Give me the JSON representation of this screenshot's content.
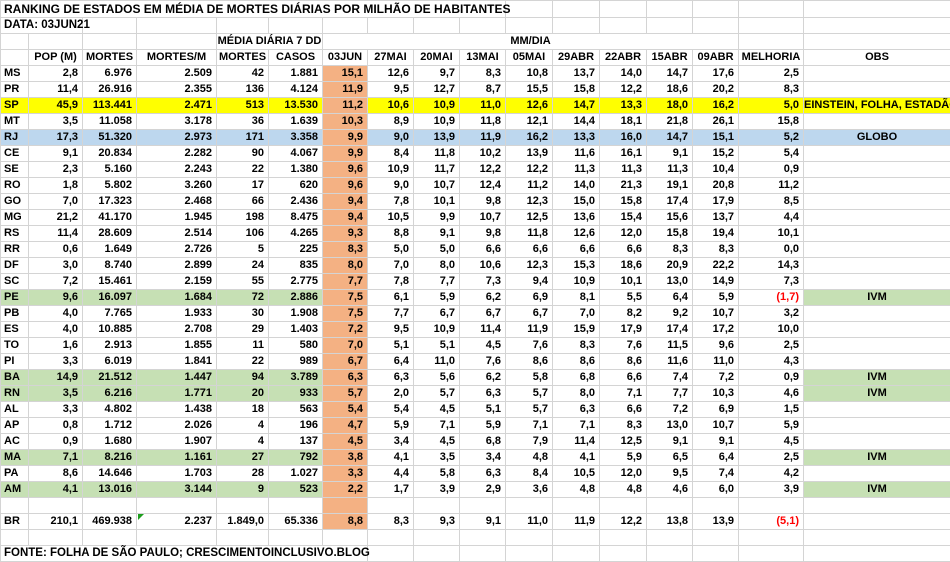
{
  "title": "RANKING DE ESTADOS EM MÉDIA DE MORTES DIÁRIAS POR MILHÃO DE HABITANTES",
  "date_label": "DATA: 03JUN21",
  "footer": "FONTE: FOLHA DE SÃO PAULO; CRESCIMENTOINCLUSIVO.BLOG",
  "colors": {
    "yellow": "#FFFF00",
    "blue": "#BDD7EE",
    "green": "#C6E0B4",
    "orange": "#F4B183",
    "red": "#FF0000",
    "grid": "#D4D4D4",
    "flag": "#1E9E1E"
  },
  "table": {
    "group_headers": {
      "media_diaria_7dd": "MÉDIA DIÁRIA 7 DD",
      "mm_dia": "MM/DIA"
    },
    "columns": [
      "",
      "POP (M)",
      "MORTES",
      "MORTES/M",
      "MORTES",
      "CASOS",
      "03JUN",
      "27MAI",
      "20MAI",
      "13MAI",
      "05MAI",
      "29ABR",
      "22ABR",
      "15ABR",
      "09ABR",
      "MELHORIA",
      "OBS"
    ],
    "rows": [
      {
        "cells": [
          "MS",
          "2,8",
          "6.976",
          "2.509",
          "42",
          "1.881",
          "15,1",
          "12,6",
          "9,7",
          "8,3",
          "10,8",
          "13,7",
          "14,0",
          "14,7",
          "17,6",
          "2,5",
          ""
        ]
      },
      {
        "cells": [
          "PR",
          "11,4",
          "26.916",
          "2.355",
          "136",
          "4.124",
          "11,9",
          "9,5",
          "12,7",
          "8,7",
          "15,5",
          "15,8",
          "12,2",
          "18,6",
          "20,2",
          "8,3",
          ""
        ]
      },
      {
        "cells": [
          "SP",
          "45,9",
          "113.441",
          "2.471",
          "513",
          "13.530",
          "11,2",
          "10,6",
          "10,9",
          "11,0",
          "12,6",
          "14,7",
          "13,3",
          "18,0",
          "16,2",
          "5,0",
          "EINSTEIN, FOLHA, ESTADÃO"
        ],
        "highlight": "yellow"
      },
      {
        "cells": [
          "MT",
          "3,5",
          "11.058",
          "3.178",
          "36",
          "1.639",
          "10,3",
          "8,9",
          "10,9",
          "11,8",
          "12,1",
          "14,4",
          "18,1",
          "21,8",
          "26,1",
          "15,8",
          ""
        ]
      },
      {
        "cells": [
          "RJ",
          "17,3",
          "51.320",
          "2.973",
          "171",
          "3.358",
          "9,9",
          "9,0",
          "13,9",
          "11,9",
          "16,2",
          "13,3",
          "16,0",
          "14,7",
          "15,1",
          "5,2",
          "GLOBO"
        ],
        "highlight": "blue"
      },
      {
        "cells": [
          "CE",
          "9,1",
          "20.834",
          "2.282",
          "90",
          "4.067",
          "9,9",
          "8,4",
          "11,8",
          "10,2",
          "13,9",
          "11,6",
          "16,1",
          "9,1",
          "15,2",
          "5,4",
          ""
        ]
      },
      {
        "cells": [
          "SE",
          "2,3",
          "5.160",
          "2.243",
          "22",
          "1.380",
          "9,6",
          "10,9",
          "11,7",
          "12,2",
          "12,2",
          "11,3",
          "11,3",
          "11,3",
          "10,4",
          "0,9",
          ""
        ]
      },
      {
        "cells": [
          "RO",
          "1,8",
          "5.802",
          "3.260",
          "17",
          "620",
          "9,6",
          "9,0",
          "10,7",
          "12,4",
          "11,2",
          "14,0",
          "21,3",
          "19,1",
          "20,8",
          "11,2",
          ""
        ]
      },
      {
        "cells": [
          "GO",
          "7,0",
          "17.323",
          "2.468",
          "66",
          "2.436",
          "9,4",
          "7,8",
          "10,1",
          "9,8",
          "12,3",
          "15,0",
          "15,8",
          "17,4",
          "17,9",
          "8,5",
          ""
        ]
      },
      {
        "cells": [
          "MG",
          "21,2",
          "41.170",
          "1.945",
          "198",
          "8.475",
          "9,4",
          "10,5",
          "9,9",
          "10,7",
          "12,5",
          "13,6",
          "15,4",
          "15,6",
          "13,7",
          "4,4",
          ""
        ]
      },
      {
        "cells": [
          "RS",
          "11,4",
          "28.609",
          "2.514",
          "106",
          "4.265",
          "9,3",
          "8,8",
          "9,1",
          "9,8",
          "11,8",
          "12,6",
          "12,0",
          "15,8",
          "19,4",
          "10,1",
          ""
        ]
      },
      {
        "cells": [
          "RR",
          "0,6",
          "1.649",
          "2.726",
          "5",
          "225",
          "8,3",
          "5,0",
          "5,0",
          "6,6",
          "6,6",
          "6,6",
          "6,6",
          "8,3",
          "8,3",
          "0,0",
          ""
        ]
      },
      {
        "cells": [
          "DF",
          "3,0",
          "8.740",
          "2.899",
          "24",
          "835",
          "8,0",
          "7,0",
          "8,0",
          "10,6",
          "12,3",
          "15,3",
          "18,6",
          "20,9",
          "22,2",
          "14,3",
          ""
        ]
      },
      {
        "cells": [
          "SC",
          "7,2",
          "15.461",
          "2.159",
          "55",
          "2.775",
          "7,7",
          "7,8",
          "7,7",
          "7,3",
          "9,4",
          "10,9",
          "10,1",
          "13,0",
          "14,9",
          "7,3",
          ""
        ]
      },
      {
        "cells": [
          "PE",
          "9,6",
          "16.097",
          "1.684",
          "72",
          "2.886",
          "7,5",
          "6,1",
          "5,9",
          "6,2",
          "6,9",
          "8,1",
          "5,5",
          "6,4",
          "5,9",
          "(1,7)",
          "IVM"
        ],
        "highlight": "green",
        "melhoria_red": true
      },
      {
        "cells": [
          "PB",
          "4,0",
          "7.765",
          "1.933",
          "30",
          "1.908",
          "7,5",
          "7,7",
          "6,7",
          "6,7",
          "6,7",
          "7,0",
          "8,2",
          "9,2",
          "10,7",
          "3,2",
          ""
        ]
      },
      {
        "cells": [
          "ES",
          "4,0",
          "10.885",
          "2.708",
          "29",
          "1.403",
          "7,2",
          "9,5",
          "10,9",
          "11,4",
          "11,9",
          "15,9",
          "17,9",
          "17,4",
          "17,2",
          "10,0",
          ""
        ]
      },
      {
        "cells": [
          "TO",
          "1,6",
          "2.913",
          "1.855",
          "11",
          "580",
          "7,0",
          "5,1",
          "5,1",
          "4,5",
          "7,6",
          "8,3",
          "7,6",
          "11,5",
          "9,6",
          "2,5",
          ""
        ]
      },
      {
        "cells": [
          "PI",
          "3,3",
          "6.019",
          "1.841",
          "22",
          "989",
          "6,7",
          "6,4",
          "11,0",
          "7,6",
          "8,6",
          "8,6",
          "8,6",
          "11,6",
          "11,0",
          "4,3",
          ""
        ]
      },
      {
        "cells": [
          "BA",
          "14,9",
          "21.512",
          "1.447",
          "94",
          "3.789",
          "6,3",
          "6,3",
          "5,6",
          "6,2",
          "5,8",
          "6,8",
          "6,6",
          "7,4",
          "7,2",
          "0,9",
          "IVM"
        ],
        "highlight": "green"
      },
      {
        "cells": [
          "RN",
          "3,5",
          "6.216",
          "1.771",
          "20",
          "933",
          "5,7",
          "2,0",
          "5,7",
          "6,3",
          "5,7",
          "8,0",
          "7,1",
          "7,7",
          "10,3",
          "4,6",
          "IVM"
        ],
        "highlight": "green"
      },
      {
        "cells": [
          "AL",
          "3,3",
          "4.802",
          "1.438",
          "18",
          "563",
          "5,4",
          "5,4",
          "4,5",
          "5,1",
          "5,7",
          "6,3",
          "6,6",
          "7,2",
          "6,9",
          "1,5",
          ""
        ]
      },
      {
        "cells": [
          "AP",
          "0,8",
          "1.712",
          "2.026",
          "4",
          "196",
          "4,7",
          "5,9",
          "7,1",
          "5,9",
          "7,1",
          "7,1",
          "8,3",
          "13,0",
          "10,7",
          "5,9",
          ""
        ]
      },
      {
        "cells": [
          "AC",
          "0,9",
          "1.680",
          "1.907",
          "4",
          "137",
          "4,5",
          "3,4",
          "4,5",
          "6,8",
          "7,9",
          "11,4",
          "12,5",
          "9,1",
          "9,1",
          "4,5",
          ""
        ]
      },
      {
        "cells": [
          "MA",
          "7,1",
          "8.216",
          "1.161",
          "27",
          "792",
          "3,8",
          "4,1",
          "3,5",
          "3,4",
          "4,8",
          "4,1",
          "5,9",
          "6,5",
          "6,4",
          "2,5",
          "IVM"
        ],
        "highlight": "green"
      },
      {
        "cells": [
          "PA",
          "8,6",
          "14.646",
          "1.703",
          "28",
          "1.027",
          "3,3",
          "4,4",
          "5,8",
          "6,3",
          "8,4",
          "10,5",
          "12,0",
          "9,5",
          "7,4",
          "4,2",
          ""
        ]
      },
      {
        "cells": [
          "AM",
          "4,1",
          "13.016",
          "3.144",
          "9",
          "523",
          "2,2",
          "1,7",
          "3,9",
          "2,9",
          "3,6",
          "4,8",
          "4,8",
          "4,6",
          "6,0",
          "3,9",
          "IVM"
        ],
        "highlight": "green"
      },
      {
        "cells": [
          "",
          "",
          "",
          "",
          "",
          "",
          "",
          "",
          "",
          "",
          "",
          "",
          "",
          "",
          "",
          "",
          ""
        ]
      },
      {
        "cells": [
          "BR",
          "210,1",
          "469.938",
          "2.237",
          "1.849,0",
          "65.336",
          "8,8",
          "8,3",
          "9,3",
          "9,1",
          "11,0",
          "11,9",
          "12,2",
          "13,8",
          "13,9",
          "(5,1)",
          ""
        ],
        "melhoria_red": true,
        "flag_col": 3
      },
      {
        "cells": [
          "",
          "",
          "",
          "",
          "",
          "",
          "",
          "",
          "",
          "",
          "",
          "",
          "",
          "",
          "",
          "",
          ""
        ],
        "orange6": false
      }
    ]
  }
}
